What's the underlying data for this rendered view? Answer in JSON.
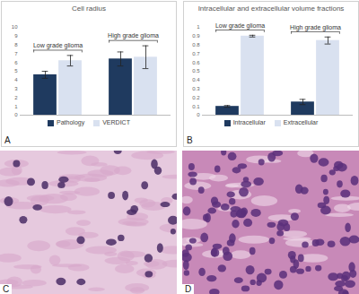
{
  "chart_data": [
    {
      "type": "bar",
      "panel_label": "A",
      "title": "Cell radius",
      "categories": [
        "Low grade glioma",
        "High grade glioma"
      ],
      "series": [
        {
          "name": "Pathology",
          "color": "#1f3a5f",
          "values": [
            4.6,
            6.4
          ],
          "errors": [
            0.4,
            0.8
          ]
        },
        {
          "name": "VERDICT",
          "color": "#d9e1f0",
          "values": [
            6.2,
            6.6
          ],
          "errors": [
            0.6,
            1.3
          ]
        }
      ],
      "ylim": [
        0,
        10
      ],
      "yticks": [
        0,
        1,
        2,
        3,
        4,
        5,
        6,
        7,
        8,
        9,
        10
      ],
      "grid": false,
      "legend": "bottom"
    },
    {
      "type": "bar",
      "panel_label": "B",
      "title": "Intracellular and extracellular volume fractions",
      "categories": [
        "Low grade glioma",
        "High grade glioma"
      ],
      "series": [
        {
          "name": "Intracellular",
          "color": "#1f3a5f",
          "values": [
            0.1,
            0.15
          ],
          "errors": [
            0.01,
            0.03
          ]
        },
        {
          "name": "Extracellular",
          "color": "#d9e1f0",
          "values": [
            0.9,
            0.85
          ],
          "errors": [
            0.01,
            0.04
          ]
        }
      ],
      "ylim": [
        0,
        1
      ],
      "yticks": [
        0,
        0.1,
        0.2,
        0.3,
        0.4,
        0.5,
        0.6,
        0.7,
        0.8,
        0.9,
        1
      ],
      "grid": false,
      "legend": "bottom"
    }
  ],
  "images": [
    {
      "label": "C"
    },
    {
      "label": "D"
    }
  ]
}
